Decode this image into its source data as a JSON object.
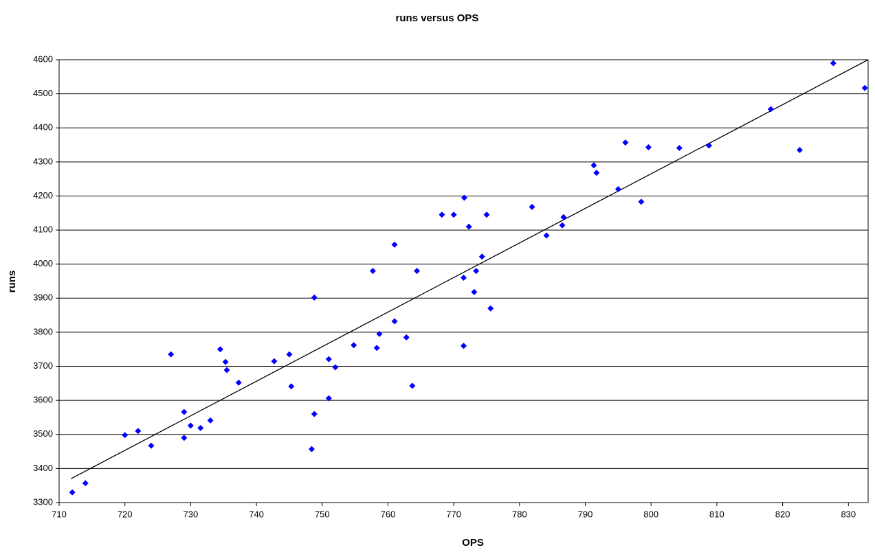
{
  "chart_data": {
    "type": "scatter",
    "title": "runs versus OPS",
    "x_label": "OPS",
    "y_label": "runs",
    "x": [
      712,
      714,
      720,
      722,
      724,
      727,
      729,
      729,
      730,
      731.5,
      733,
      734.5,
      735.3,
      735.5,
      737.3,
      742.7,
      745,
      745.3,
      748.4,
      748.8,
      748.8,
      751,
      751,
      752,
      754.8,
      757.7,
      758.3,
      758.7,
      761,
      761,
      762.8,
      763.7,
      764.4,
      768.2,
      770,
      771.5,
      771.5,
      771.6,
      772.3,
      773.1,
      773.4,
      774.3,
      775,
      775.6,
      781.9,
      784.1,
      786.5,
      786.7,
      791.3,
      791.7,
      795,
      796.1,
      798.5,
      799.6,
      804.3,
      808.8,
      818.2,
      822.6,
      827.7,
      832.5
    ],
    "y": [
      3330,
      3357,
      3498,
      3510,
      3467,
      3735,
      3566,
      3490,
      3526,
      3519,
      3541,
      3750,
      3713,
      3689,
      3652,
      3715,
      3735,
      3641,
      3457,
      3902,
      3560,
      3721,
      3606,
      3697,
      3762,
      3980,
      3754,
      3795,
      3832,
      4057,
      3785,
      3643,
      3980,
      4145,
      4145,
      3760,
      3960,
      4195,
      4110,
      3918,
      3980,
      4022,
      4145,
      3870,
      4168,
      4084,
      4114,
      4138,
      4290,
      4268,
      4220,
      4357,
      4183,
      4343,
      4341,
      4348,
      4455,
      4335,
      4590,
      4517
    ],
    "color": "#0000ff",
    "trendline": {
      "x": [
        711.8,
        833
      ],
      "y": [
        3370,
        4600
      ],
      "color": "#000000"
    },
    "xlim": [
      710,
      833
    ],
    "ylim": [
      3300,
      4600
    ],
    "xticks": [
      710,
      720,
      730,
      740,
      750,
      760,
      770,
      780,
      790,
      800,
      810,
      820,
      830
    ],
    "yticks": [
      3300,
      3400,
      3500,
      3600,
      3700,
      3800,
      3900,
      4000,
      4100,
      4200,
      4300,
      4400,
      4500,
      4600
    ],
    "grid": true
  }
}
